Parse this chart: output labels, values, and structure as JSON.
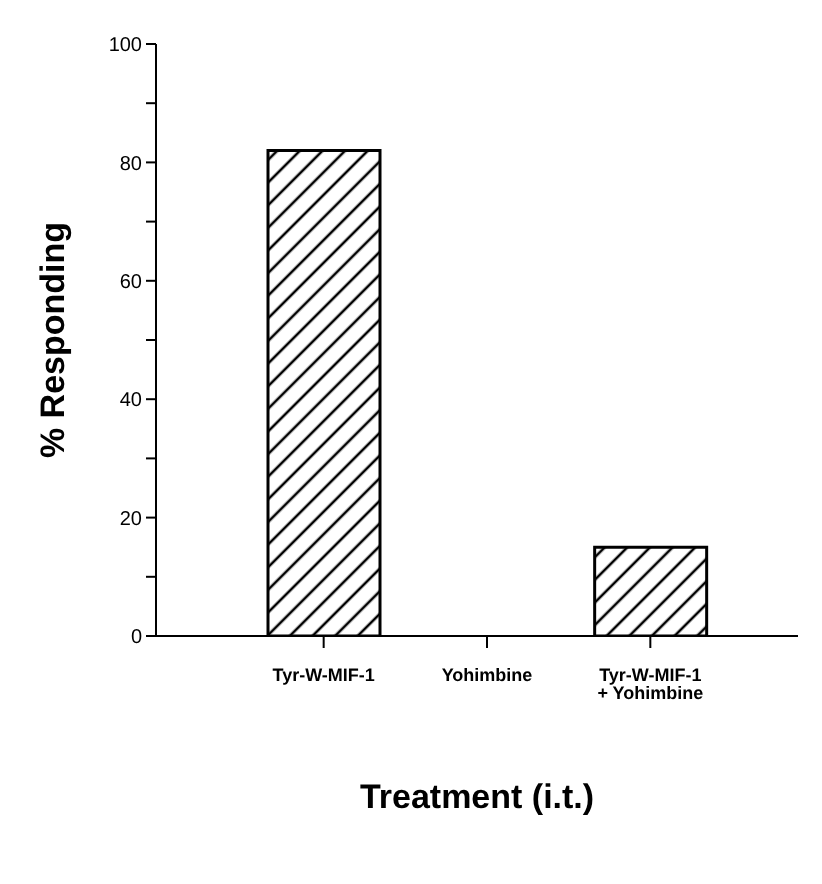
{
  "chart_data": {
    "type": "bar",
    "xlabel": "Treatment (i.t.)",
    "ylabel": "% Responding",
    "categories": [
      "Tyr-W-MIF-1",
      "Yohimbine",
      "Tyr-W-MIF-1 + Yohimbine"
    ],
    "values": [
      82,
      0,
      15
    ],
    "color": "#000000",
    "ylim": [
      0,
      100
    ],
    "yticks": [
      0,
      {
        "value": 10,
        "label": null
      },
      20,
      {
        "value": 30,
        "label": null
      },
      40,
      {
        "value": 50,
        "label": null
      },
      60,
      {
        "value": 70,
        "label": null
      },
      80,
      {
        "value": 90,
        "label": null
      },
      100
    ],
    "grid": false,
    "legend": false
  }
}
